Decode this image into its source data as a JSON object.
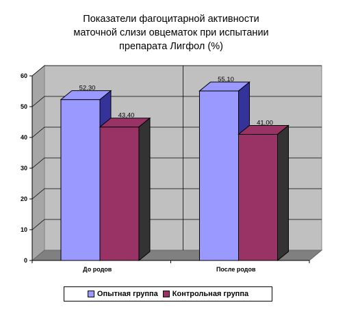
{
  "chart_data": {
    "type": "bar",
    "title": "Показатели фагоцитарной активности\nматочной слизи овцематок при испытании\nпрепарата Лигфол (%)",
    "categories": [
      "До родов",
      "После родов"
    ],
    "series": [
      {
        "name": "Опытная группа",
        "values": [
          52.3,
          55.1
        ],
        "labels": [
          "52,30",
          "55,10"
        ],
        "color": "#9999ff",
        "side": "#333399"
      },
      {
        "name": "Контрольная группа",
        "values": [
          43.4,
          41.0
        ],
        "labels": [
          "43,40",
          "41,00"
        ],
        "color": "#993366",
        "side": "#333333"
      }
    ],
    "ylim": [
      0,
      60
    ],
    "yticks": [
      "0",
      "10",
      "20",
      "30",
      "40",
      "50",
      "60"
    ],
    "grid": true,
    "legend": "bottom",
    "wall_color": "#c0c0c0",
    "floor_color": "#808080"
  }
}
